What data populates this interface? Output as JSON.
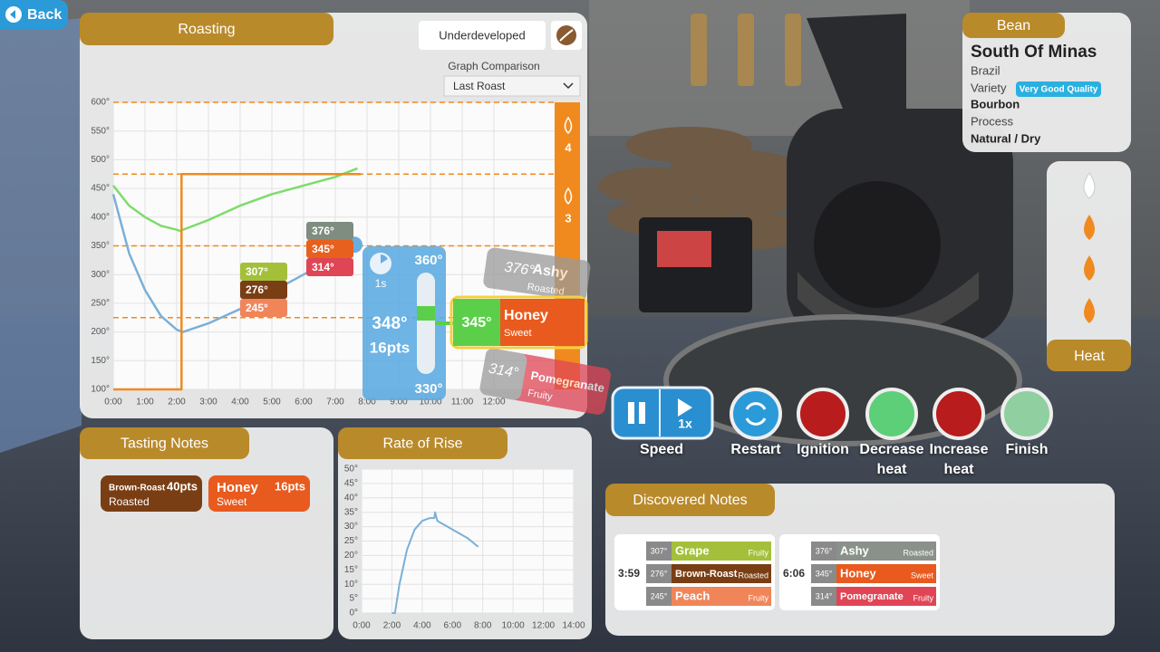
{
  "back": "Back",
  "roasting": {
    "title": "Roasting",
    "status": "Underdeveloped",
    "comparison_label": "Graph Comparison",
    "comparison_value": "Last Roast",
    "chart": {
      "type": "line",
      "xlim": [
        0,
        14
      ],
      "ylim": [
        100,
        600
      ],
      "xticks": [
        {
          "value": 0,
          "label": "0:00"
        },
        {
          "value": 1,
          "label": "1:00"
        },
        {
          "value": 2,
          "label": "2:00"
        },
        {
          "value": 3,
          "label": "3:00"
        },
        {
          "value": 4,
          "label": "4:00"
        },
        {
          "value": 5,
          "label": "5:00"
        },
        {
          "value": 6,
          "label": "6:00"
        },
        {
          "value": 7,
          "label": "7:00"
        },
        {
          "value": 8,
          "label": "8:00"
        },
        {
          "value": 9,
          "label": "9:00"
        },
        {
          "value": 10,
          "label": "10:00"
        },
        {
          "value": 11,
          "label": "11:00"
        },
        {
          "value": 12,
          "label": "12:00"
        }
      ],
      "yticks": [
        {
          "value": 100,
          "label": "100°"
        },
        {
          "value": 150,
          "label": "150°"
        },
        {
          "value": 200,
          "label": "200°"
        },
        {
          "value": 250,
          "label": "250°"
        },
        {
          "value": 300,
          "label": "300°"
        },
        {
          "value": 350,
          "label": "350°"
        },
        {
          "value": 400,
          "label": "400°"
        },
        {
          "value": 450,
          "label": "450°"
        },
        {
          "value": 500,
          "label": "500°"
        },
        {
          "value": 550,
          "label": "550°"
        },
        {
          "value": 600,
          "label": "600°"
        }
      ],
      "reference_lines": [
        600,
        475,
        350,
        225
      ],
      "series": [
        {
          "color": "#7ab0d8",
          "x": [
            0,
            0.5,
            1,
            1.5,
            2,
            2.2,
            3,
            4,
            5,
            6,
            7,
            7.6
          ],
          "values": [
            440,
            337,
            273,
            228,
            204,
            200,
            215,
            240,
            270,
            300,
            330,
            352
          ]
        },
        {
          "color": "#7ddc6a",
          "x": [
            0,
            0.5,
            1,
            1.5,
            2,
            2.1,
            3,
            4,
            5,
            6,
            7,
            7.7
          ],
          "values": [
            455,
            420,
            400,
            385,
            378,
            376,
            395,
            420,
            440,
            455,
            470,
            485
          ]
        },
        {
          "color": "#f08a1e",
          "x": [
            0,
            2.15,
            2.15,
            7.8
          ],
          "values": [
            100,
            100,
            475,
            475
          ]
        }
      ],
      "heat_levels": [
        "4",
        "3"
      ]
    },
    "upper_marks": [
      "376°",
      "345°",
      "314°"
    ],
    "lower_marks": [
      "307°",
      "276°",
      "245°"
    ],
    "tooltip": {
      "time": "1s",
      "max": "360°",
      "current": "348°",
      "points": "16pts",
      "min": "330°"
    },
    "current_note": {
      "temp": "345°",
      "name": "Honey",
      "flavor": "Sweet"
    },
    "ghost_notes": [
      {
        "temp": "376°",
        "name": "Ashy",
        "flavor": "Roasted"
      },
      {
        "temp": "314°",
        "name": "Pomegranate",
        "flavor": "Fruity"
      }
    ]
  },
  "tasting_notes": {
    "title": "Tasting Notes",
    "items": [
      {
        "name": "Brown-Roast",
        "points": "40pts",
        "flavor": "Roasted",
        "color": "#7a3e14"
      },
      {
        "name": "Honey",
        "points": "16pts",
        "flavor": "Sweet",
        "color": "#e85a1e"
      }
    ]
  },
  "rate_of_rise": {
    "title": "Rate of Rise",
    "chart": {
      "type": "line",
      "xlim": [
        0,
        14
      ],
      "ylim": [
        0,
        50
      ],
      "xticks": [
        {
          "value": 0,
          "label": "0:00"
        },
        {
          "value": 2,
          "label": "2:00"
        },
        {
          "value": 4,
          "label": "4:00"
        },
        {
          "value": 6,
          "label": "6:00"
        },
        {
          "value": 8,
          "label": "8:00"
        },
        {
          "value": 10,
          "label": "10:00"
        },
        {
          "value": 12,
          "label": "12:00"
        },
        {
          "value": 14,
          "label": "14:00"
        }
      ],
      "yticks": [
        {
          "value": 0,
          "label": "0°"
        },
        {
          "value": 5,
          "label": "5°"
        },
        {
          "value": 10,
          "label": "10°"
        },
        {
          "value": 15,
          "label": "15°"
        },
        {
          "value": 20,
          "label": "20°"
        },
        {
          "value": 25,
          "label": "25°"
        },
        {
          "value": 30,
          "label": "30°"
        },
        {
          "value": 35,
          "label": "35°"
        },
        {
          "value": 40,
          "label": "40°"
        },
        {
          "value": 45,
          "label": "45°"
        },
        {
          "value": 50,
          "label": "50°"
        }
      ],
      "x": [
        2,
        2.2,
        2.5,
        3,
        3.5,
        4,
        4.5,
        4.8,
        4.85,
        5,
        6,
        7,
        7.7
      ],
      "values": [
        0,
        0,
        10,
        22,
        29,
        32,
        33,
        33,
        35,
        32,
        29,
        26,
        23
      ],
      "color": "#7ab0d8"
    }
  },
  "controls": {
    "speed": "1x",
    "labels": [
      "Speed",
      "Restart",
      "Ignition",
      "Decrease heat",
      "Increase heat",
      "Finish"
    ]
  },
  "bean": {
    "title": "Bean",
    "name": "South Of Minas",
    "origin": "Brazil",
    "variety_label": "Variety",
    "quality": "Very Good Quality",
    "variety": "Bourbon",
    "process_label": "Process",
    "process": "Natural / Dry"
  },
  "heat": {
    "title": "Heat"
  },
  "discovered": {
    "title": "Discovered Notes",
    "groups": [
      {
        "time": "3:59",
        "notes": [
          {
            "temp": "307°",
            "name": "Grape",
            "flavor": "Fruity",
            "color": "#a4c03a"
          },
          {
            "temp": "276°",
            "name": "Brown-Roast",
            "flavor": "Roasted",
            "color": "#7a3e14"
          },
          {
            "temp": "245°",
            "name": "Peach",
            "flavor": "Fruity",
            "color": "#f0855a"
          }
        ]
      },
      {
        "time": "6:06",
        "notes": [
          {
            "temp": "376°",
            "name": "Ashy",
            "flavor": "Roasted",
            "color": "#8a908a"
          },
          {
            "temp": "345°",
            "name": "Honey",
            "flavor": "Sweet",
            "color": "#e85a1e"
          },
          {
            "temp": "314°",
            "name": "Pomegranate",
            "flavor": "Fruity",
            "color": "#e04555"
          }
        ]
      }
    ]
  }
}
